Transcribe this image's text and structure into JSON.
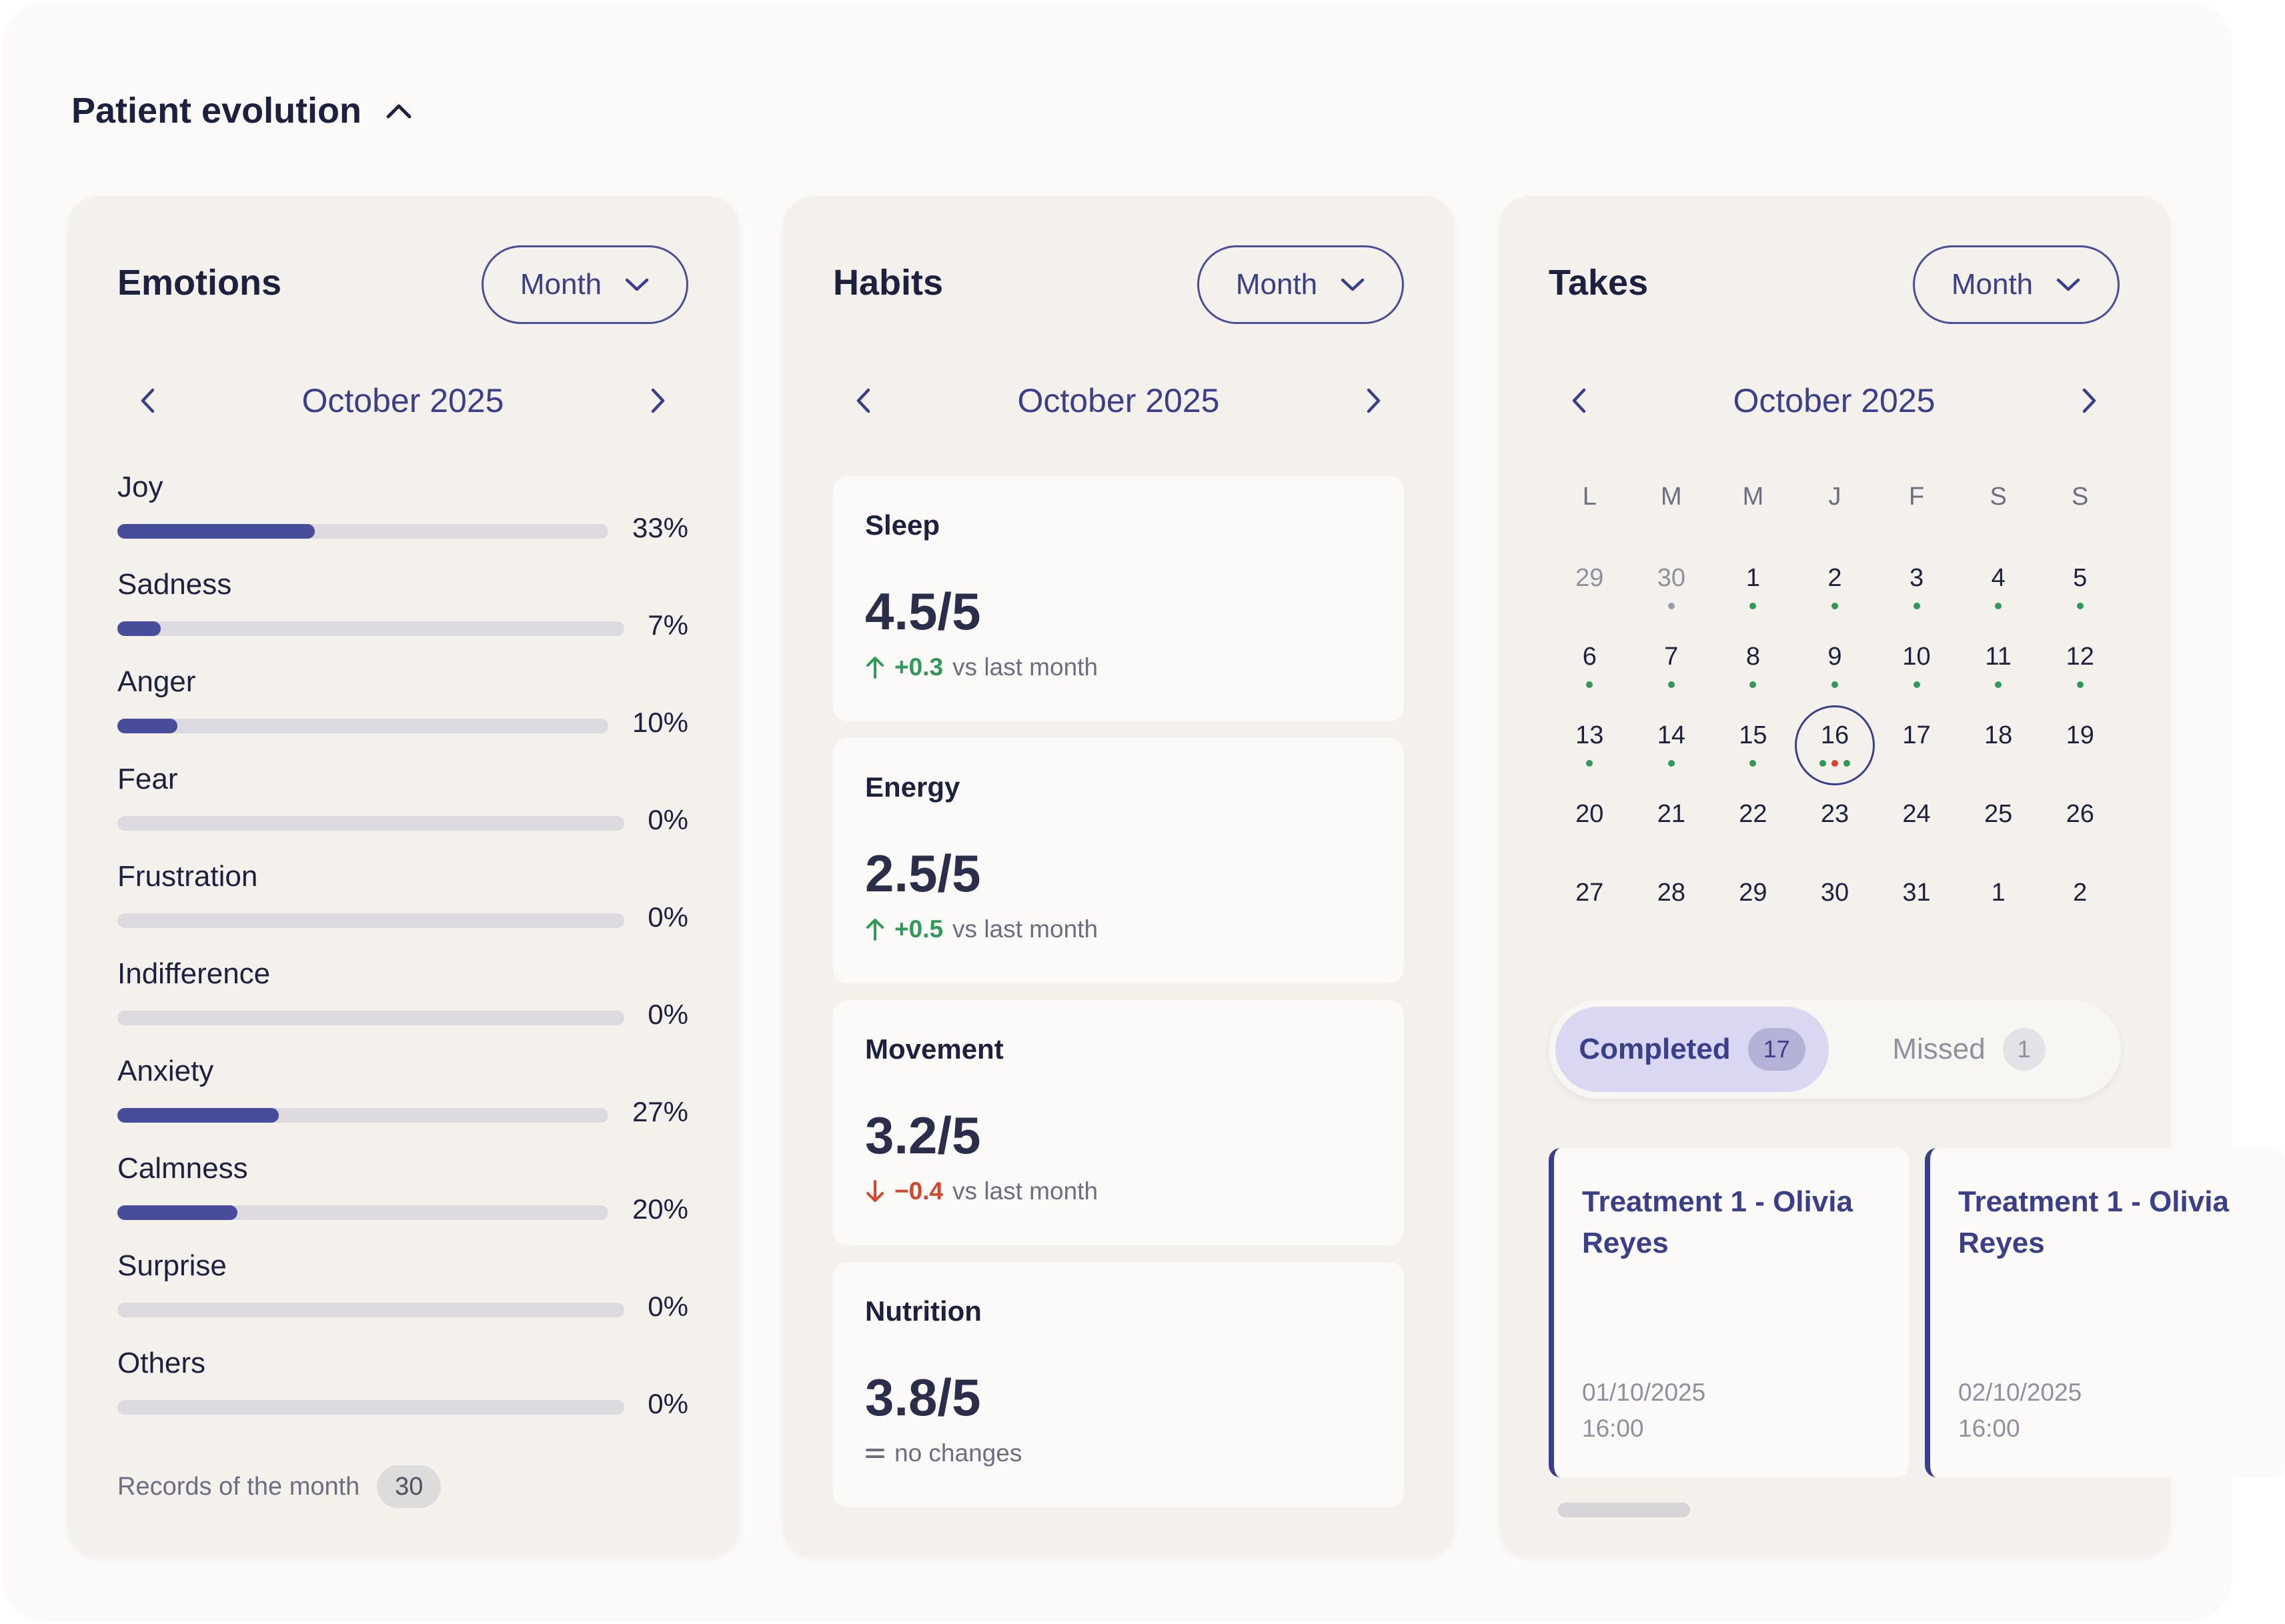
{
  "section": {
    "title": "Patient evolution",
    "icon": "chevron-up-icon"
  },
  "emotions": {
    "title": "Emotions",
    "period": "Month",
    "month": "October 2025",
    "items": [
      {
        "label": "Joy",
        "percent": "33%",
        "value": 33
      },
      {
        "label": "Sadness",
        "percent": "7%",
        "value": 7
      },
      {
        "label": "Anger",
        "percent": "10%",
        "value": 10
      },
      {
        "label": "Fear",
        "percent": "0%",
        "value": 0
      },
      {
        "label": "Frustration",
        "percent": "0%",
        "value": 0
      },
      {
        "label": "Indifference",
        "percent": "0%",
        "value": 0
      },
      {
        "label": "Anxiety",
        "percent": "27%",
        "value": 27
      },
      {
        "label": "Calmness",
        "percent": "20%",
        "value": 20
      },
      {
        "label": "Surprise",
        "percent": "0%",
        "value": 0
      },
      {
        "label": "Others",
        "percent": "0%",
        "value": 0
      }
    ],
    "records_label": "Records of the month",
    "records_count": "30"
  },
  "habits": {
    "title": "Habits",
    "period": "Month",
    "month": "October 2025",
    "items": [
      {
        "name": "Sleep",
        "score": "4.5/5",
        "delta": "+0.3",
        "trend": "up",
        "suffix": "vs last month"
      },
      {
        "name": "Energy",
        "score": "2.5/5",
        "delta": "+0.5",
        "trend": "up",
        "suffix": "vs last month"
      },
      {
        "name": "Movement",
        "score": "3.2/5",
        "delta": "−0.4",
        "trend": "down",
        "suffix": "vs last month"
      },
      {
        "name": "Nutrition",
        "score": "3.8/5",
        "delta": "",
        "trend": "flat",
        "suffix": "no changes"
      }
    ]
  },
  "takes": {
    "title": "Takes",
    "period": "Month",
    "month": "October 2025",
    "weekdays": [
      "L",
      "M",
      "M",
      "J",
      "F",
      "S",
      "S"
    ],
    "weeks": [
      [
        {
          "d": "29",
          "muted": true,
          "dots": []
        },
        {
          "d": "30",
          "muted": true,
          "dots": [
            "n"
          ]
        },
        {
          "d": "1",
          "dots": [
            "g"
          ]
        },
        {
          "d": "2",
          "dots": [
            "g"
          ]
        },
        {
          "d": "3",
          "dots": [
            "g"
          ]
        },
        {
          "d": "4",
          "dots": [
            "g"
          ]
        },
        {
          "d": "5",
          "dots": [
            "g"
          ]
        }
      ],
      [
        {
          "d": "6",
          "dots": [
            "g"
          ]
        },
        {
          "d": "7",
          "dots": [
            "g"
          ]
        },
        {
          "d": "8",
          "dots": [
            "g"
          ]
        },
        {
          "d": "9",
          "dots": [
            "g"
          ]
        },
        {
          "d": "10",
          "dots": [
            "g"
          ]
        },
        {
          "d": "11",
          "dots": [
            "g"
          ]
        },
        {
          "d": "12",
          "dots": [
            "g"
          ]
        }
      ],
      [
        {
          "d": "13",
          "dots": [
            "g"
          ]
        },
        {
          "d": "14",
          "dots": [
            "g"
          ]
        },
        {
          "d": "15",
          "dots": [
            "g"
          ]
        },
        {
          "d": "16",
          "today": true,
          "dots": [
            "g",
            "r",
            "g"
          ]
        },
        {
          "d": "17",
          "dots": []
        },
        {
          "d": "18",
          "dots": []
        },
        {
          "d": "19",
          "dots": []
        }
      ],
      [
        {
          "d": "20",
          "dots": []
        },
        {
          "d": "21",
          "dots": []
        },
        {
          "d": "22",
          "dots": []
        },
        {
          "d": "23",
          "dots": []
        },
        {
          "d": "24",
          "dots": []
        },
        {
          "d": "25",
          "dots": []
        },
        {
          "d": "26",
          "dots": []
        }
      ],
      [
        {
          "d": "27",
          "dots": []
        },
        {
          "d": "28",
          "dots": []
        },
        {
          "d": "29",
          "dots": []
        },
        {
          "d": "30",
          "dots": []
        },
        {
          "d": "31",
          "dots": []
        },
        {
          "d": "1",
          "dots": []
        },
        {
          "d": "2",
          "dots": []
        }
      ]
    ],
    "tabs": {
      "completed_label": "Completed",
      "completed_count": "17",
      "missed_label": "Missed",
      "missed_count": "1"
    },
    "treatments": [
      {
        "title_line1": "Treatment 1 - Olivia",
        "title_line2": "Reyes",
        "date": "01/10/2025",
        "time": "16:00"
      },
      {
        "title_line1": "Treatment 1 - Olivia",
        "title_line2": "Reyes",
        "date": "02/10/2025",
        "time": "16:00"
      }
    ]
  },
  "colors": {
    "accent": "#3a3f8c",
    "bar": "#474c9b",
    "positive": "#2f9a56",
    "negative": "#d9452b",
    "card_bg": "#f4f0ec"
  }
}
